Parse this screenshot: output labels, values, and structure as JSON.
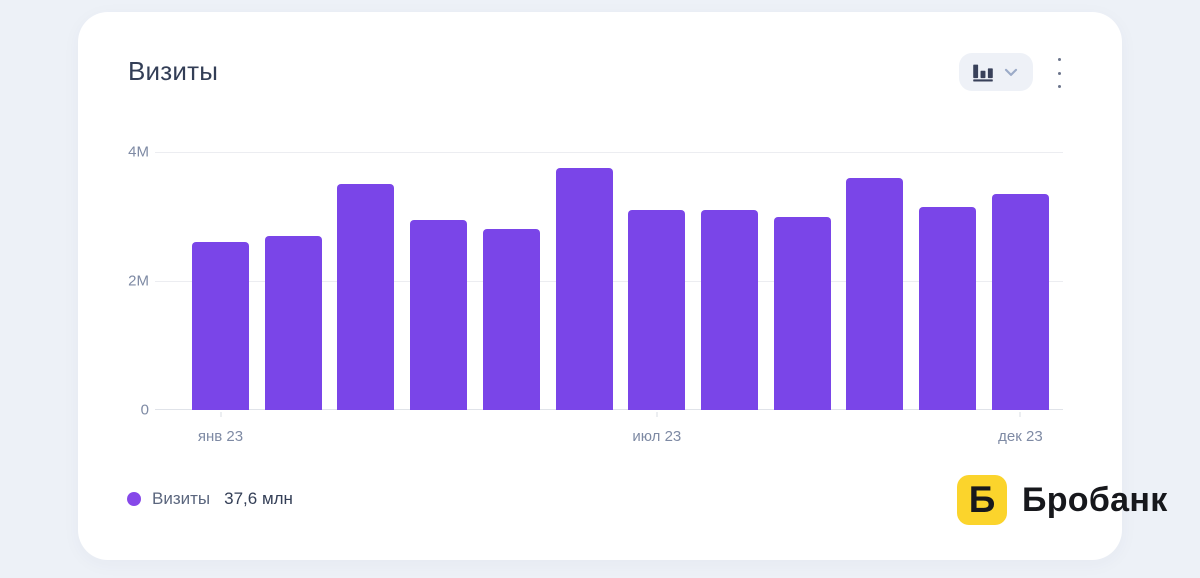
{
  "widget": {
    "title": "Визиты",
    "toolbar": {
      "chart_type_icon": "bar-chart-icon",
      "chevron_icon": "chevron-down-icon",
      "menu_icon": "kebab-menu-icon"
    }
  },
  "chart_data": {
    "type": "bar",
    "title": "Визиты",
    "series_name": "Визиты",
    "values_millions": [
      2.6,
      2.7,
      3.5,
      2.95,
      2.8,
      3.75,
      3.1,
      3.1,
      3.0,
      3.6,
      3.15,
      3.35
    ],
    "ylim_millions": [
      0,
      4
    ],
    "y_tick_labels": [
      "4M",
      "2M",
      "0"
    ],
    "x_ticks": [
      {
        "label": "янв 23",
        "bar_index": 0
      },
      {
        "label": "июл 23",
        "bar_index": 6
      },
      {
        "label": "дек 23",
        "bar_index": 11
      }
    ],
    "bar_color": "#7a45e8",
    "grid": "horizontal-only",
    "legend_position": "bottom-left"
  },
  "legend": {
    "series_label": "Визиты",
    "total_value": "37,6 млн",
    "dot_color": "#8648e9"
  },
  "watermark": {
    "letter": "Б",
    "brand": "Бробанк",
    "box_color": "#fbd42c",
    "text_color": "#17181c"
  },
  "colors": {
    "page_background": "#edf1f7",
    "card_background": "#ffffff",
    "axis_label": "#7e8aa4",
    "title": "#333e56"
  }
}
